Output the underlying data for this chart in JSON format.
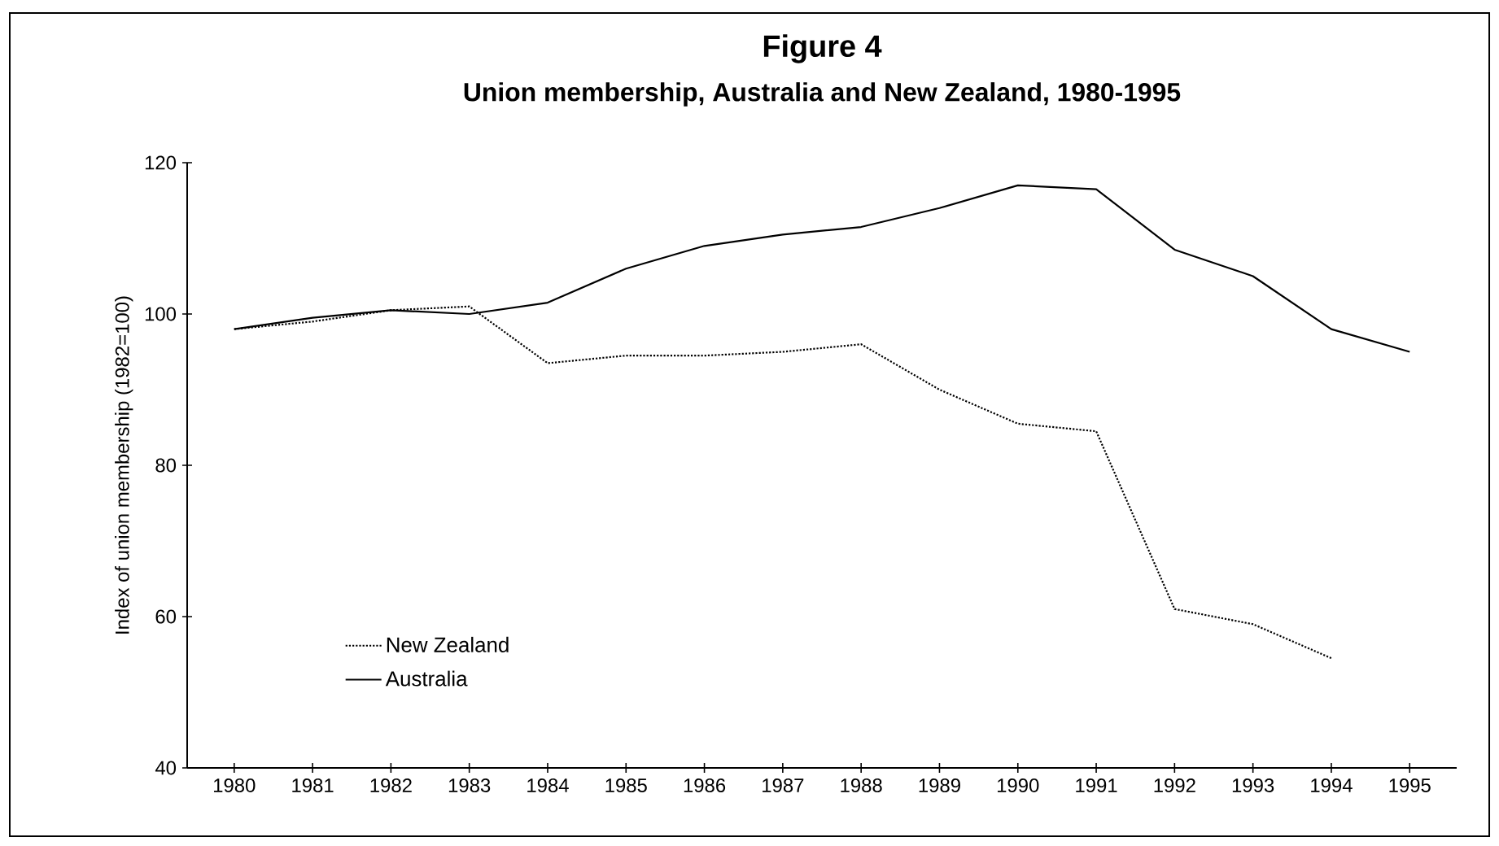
{
  "chart_data": {
    "type": "line",
    "title": "Figure 4",
    "subtitle": "Union membership, Australia and New Zealand, 1980-1995",
    "ylabel": "Index of union membership (1982=100)",
    "categories": [
      "1980",
      "1981",
      "1982",
      "1983",
      "1984",
      "1985",
      "1986",
      "1987",
      "1988",
      "1989",
      "1990",
      "1991",
      "1992",
      "1993",
      "1994",
      "1995"
    ],
    "series": [
      {
        "name": "New Zealand",
        "color": "#000000",
        "line_style": "dotted",
        "values": [
          98,
          99,
          100.5,
          101,
          93.5,
          94.5,
          94.5,
          95,
          96,
          90,
          85.5,
          84.5,
          61,
          59,
          54.5,
          null
        ]
      },
      {
        "name": "Australia",
        "color": "#000000",
        "line_style": "solid",
        "values": [
          98,
          99.5,
          100.5,
          100,
          101.5,
          106,
          109,
          110.5,
          111.5,
          114,
          117,
          116.5,
          108.5,
          105,
          98,
          95
        ]
      }
    ],
    "ylim": [
      40,
      120
    ],
    "yticks": [
      40,
      60,
      80,
      100,
      120
    ],
    "grid": false,
    "legend": "bottom left",
    "marker": "none"
  }
}
